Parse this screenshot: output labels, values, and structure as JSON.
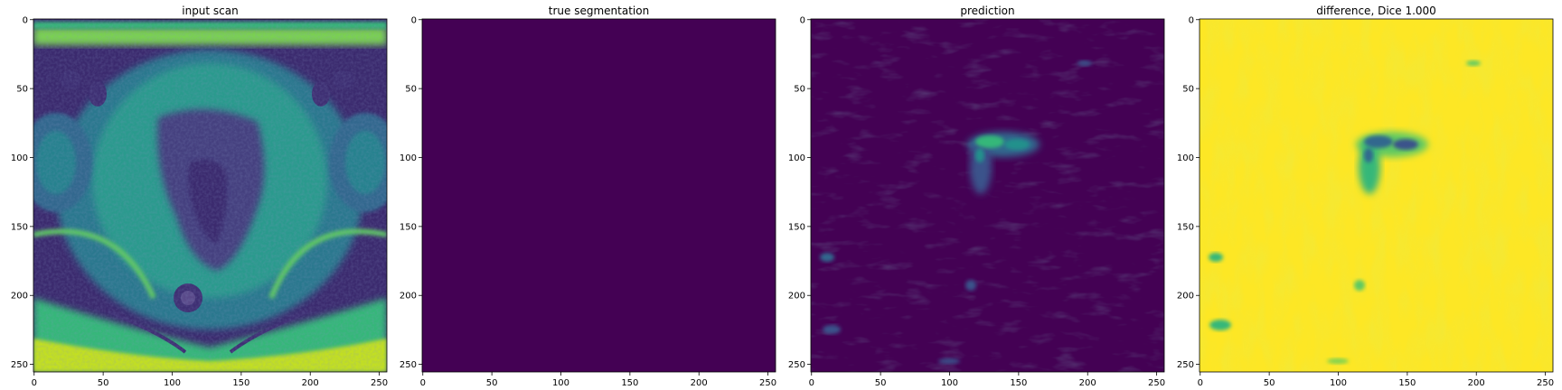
{
  "chart_data": [
    {
      "type": "heatmap",
      "title": "input scan",
      "xlim": [
        0,
        255
      ],
      "ylim": [
        255,
        0
      ],
      "xticks": [
        0,
        50,
        100,
        150,
        200,
        250
      ],
      "yticks": [
        0,
        50,
        100,
        150,
        200,
        250
      ],
      "colormap": "viridis",
      "content": "pelvic MR slice"
    },
    {
      "type": "heatmap",
      "title": "true segmentation",
      "xlim": [
        0,
        255
      ],
      "ylim": [
        255,
        0
      ],
      "xticks": [
        0,
        50,
        100,
        150,
        200,
        250
      ],
      "yticks": [
        0,
        50,
        100,
        150,
        200,
        250
      ],
      "colormap": "viridis",
      "content": "uniform 0 (no segmented region)"
    },
    {
      "type": "heatmap",
      "title": "prediction",
      "xlim": [
        0,
        255
      ],
      "ylim": [
        255,
        0
      ],
      "xticks": [
        0,
        50,
        100,
        150,
        200,
        250
      ],
      "yticks": [
        0,
        50,
        100,
        150,
        200,
        250
      ],
      "colormap": "viridis",
      "content": "mostly low values, small bright cluster near x≈115-165, y≈65-100"
    },
    {
      "type": "heatmap",
      "title": "difference, Dice 1.000",
      "xlim": [
        0,
        255
      ],
      "ylim": [
        255,
        0
      ],
      "xticks": [
        0,
        50,
        100,
        150,
        200,
        250
      ],
      "yticks": [
        0,
        50,
        100,
        150,
        200,
        250
      ],
      "colormap": "viridis",
      "content": "mostly high values, dark cluster near x≈115-165, y≈65-100"
    }
  ],
  "colors": {
    "viridis_low": "#440154",
    "viridis_mid": "#21918c",
    "viridis_high": "#fde725",
    "green_mid": "#35b779",
    "scan_bg": "#3b2a6e"
  }
}
